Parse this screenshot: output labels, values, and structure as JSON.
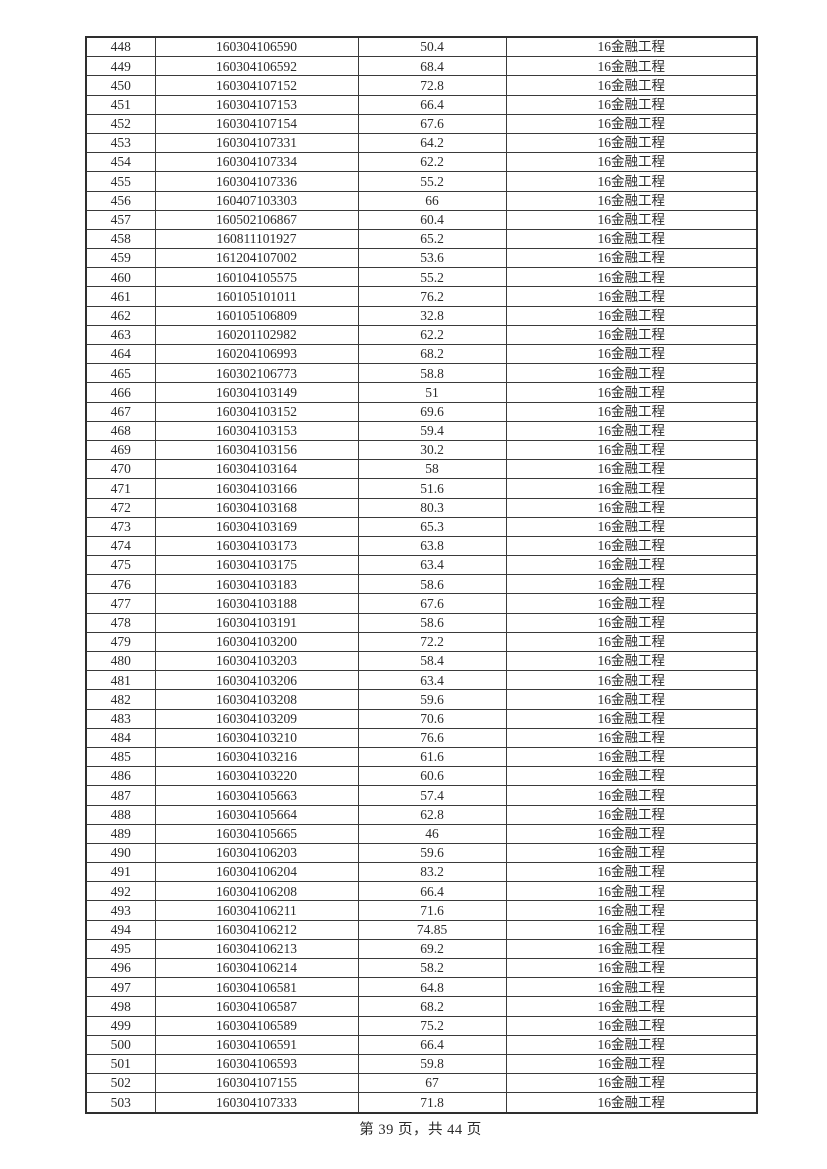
{
  "document": {
    "footer_text": "第 39 页，共 44 页"
  },
  "table": {
    "rows": [
      [
        "448",
        "160304106590",
        "50.4",
        "16金融工程"
      ],
      [
        "449",
        "160304106592",
        "68.4",
        "16金融工程"
      ],
      [
        "450",
        "160304107152",
        "72.8",
        "16金融工程"
      ],
      [
        "451",
        "160304107153",
        "66.4",
        "16金融工程"
      ],
      [
        "452",
        "160304107154",
        "67.6",
        "16金融工程"
      ],
      [
        "453",
        "160304107331",
        "64.2",
        "16金融工程"
      ],
      [
        "454",
        "160304107334",
        "62.2",
        "16金融工程"
      ],
      [
        "455",
        "160304107336",
        "55.2",
        "16金融工程"
      ],
      [
        "456",
        "160407103303",
        "66",
        "16金融工程"
      ],
      [
        "457",
        "160502106867",
        "60.4",
        "16金融工程"
      ],
      [
        "458",
        "160811101927",
        "65.2",
        "16金融工程"
      ],
      [
        "459",
        "161204107002",
        "53.6",
        "16金融工程"
      ],
      [
        "460",
        "160104105575",
        "55.2",
        "16金融工程"
      ],
      [
        "461",
        "160105101011",
        "76.2",
        "16金融工程"
      ],
      [
        "462",
        "160105106809",
        "32.8",
        "16金融工程"
      ],
      [
        "463",
        "160201102982",
        "62.2",
        "16金融工程"
      ],
      [
        "464",
        "160204106993",
        "68.2",
        "16金融工程"
      ],
      [
        "465",
        "160302106773",
        "58.8",
        "16金融工程"
      ],
      [
        "466",
        "160304103149",
        "51",
        "16金融工程"
      ],
      [
        "467",
        "160304103152",
        "69.6",
        "16金融工程"
      ],
      [
        "468",
        "160304103153",
        "59.4",
        "16金融工程"
      ],
      [
        "469",
        "160304103156",
        "30.2",
        "16金融工程"
      ],
      [
        "470",
        "160304103164",
        "58",
        "16金融工程"
      ],
      [
        "471",
        "160304103166",
        "51.6",
        "16金融工程"
      ],
      [
        "472",
        "160304103168",
        "80.3",
        "16金融工程"
      ],
      [
        "473",
        "160304103169",
        "65.3",
        "16金融工程"
      ],
      [
        "474",
        "160304103173",
        "63.8",
        "16金融工程"
      ],
      [
        "475",
        "160304103175",
        "63.4",
        "16金融工程"
      ],
      [
        "476",
        "160304103183",
        "58.6",
        "16金融工程"
      ],
      [
        "477",
        "160304103188",
        "67.6",
        "16金融工程"
      ],
      [
        "478",
        "160304103191",
        "58.6",
        "16金融工程"
      ],
      [
        "479",
        "160304103200",
        "72.2",
        "16金融工程"
      ],
      [
        "480",
        "160304103203",
        "58.4",
        "16金融工程"
      ],
      [
        "481",
        "160304103206",
        "63.4",
        "16金融工程"
      ],
      [
        "482",
        "160304103208",
        "59.6",
        "16金融工程"
      ],
      [
        "483",
        "160304103209",
        "70.6",
        "16金融工程"
      ],
      [
        "484",
        "160304103210",
        "76.6",
        "16金融工程"
      ],
      [
        "485",
        "160304103216",
        "61.6",
        "16金融工程"
      ],
      [
        "486",
        "160304103220",
        "60.6",
        "16金融工程"
      ],
      [
        "487",
        "160304105663",
        "57.4",
        "16金融工程"
      ],
      [
        "488",
        "160304105664",
        "62.8",
        "16金融工程"
      ],
      [
        "489",
        "160304105665",
        "46",
        "16金融工程"
      ],
      [
        "490",
        "160304106203",
        "59.6",
        "16金融工程"
      ],
      [
        "491",
        "160304106204",
        "83.2",
        "16金融工程"
      ],
      [
        "492",
        "160304106208",
        "66.4",
        "16金融工程"
      ],
      [
        "493",
        "160304106211",
        "71.6",
        "16金融工程"
      ],
      [
        "494",
        "160304106212",
        "74.85",
        "16金融工程"
      ],
      [
        "495",
        "160304106213",
        "69.2",
        "16金融工程"
      ],
      [
        "496",
        "160304106214",
        "58.2",
        "16金融工程"
      ],
      [
        "497",
        "160304106581",
        "64.8",
        "16金融工程"
      ],
      [
        "498",
        "160304106587",
        "68.2",
        "16金融工程"
      ],
      [
        "499",
        "160304106589",
        "75.2",
        "16金融工程"
      ],
      [
        "500",
        "160304106591",
        "66.4",
        "16金融工程"
      ],
      [
        "501",
        "160304106593",
        "59.8",
        "16金融工程"
      ],
      [
        "502",
        "160304107155",
        "67",
        "16金融工程"
      ],
      [
        "503",
        "160304107333",
        "71.8",
        "16金融工程"
      ]
    ]
  }
}
